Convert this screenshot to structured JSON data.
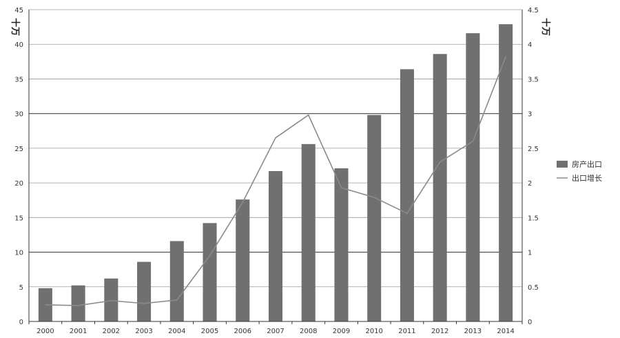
{
  "chart_data": {
    "type": "bar",
    "categories": [
      "2000",
      "2001",
      "2002",
      "2003",
      "2004",
      "2005",
      "2006",
      "2007",
      "2008",
      "2009",
      "2010",
      "2011",
      "2012",
      "2013",
      "2014"
    ],
    "series": [
      {
        "name": "房产出口",
        "kind": "bar",
        "axis": "left",
        "color": "#707070",
        "values": [
          4.8,
          5.2,
          6.2,
          8.6,
          11.6,
          14.2,
          17.6,
          21.7,
          25.6,
          22.1,
          29.8,
          36.4,
          38.6,
          41.6,
          42.9
        ]
      },
      {
        "name": "出口增长",
        "kind": "line",
        "axis": "right",
        "color": "#8a8a8a",
        "values": [
          0.24,
          0.23,
          0.3,
          0.26,
          0.31,
          0.95,
          1.72,
          2.65,
          2.98,
          1.93,
          1.79,
          1.56,
          2.3,
          2.6,
          3.82
        ]
      }
    ],
    "y_left": {
      "label": "十万",
      "ylim": [
        0,
        45
      ],
      "ticks": [
        "0",
        "5",
        "10",
        "15",
        "20",
        "25",
        "30",
        "35",
        "40",
        "45"
      ]
    },
    "y_right": {
      "label": "十万",
      "ylim": [
        0,
        4.5
      ],
      "ticks": [
        "0",
        "0.5",
        "1",
        "1.5",
        "2",
        "2.5",
        "3",
        "3.5",
        "4",
        "4.5"
      ]
    },
    "grid": true,
    "legend_position": "right"
  }
}
